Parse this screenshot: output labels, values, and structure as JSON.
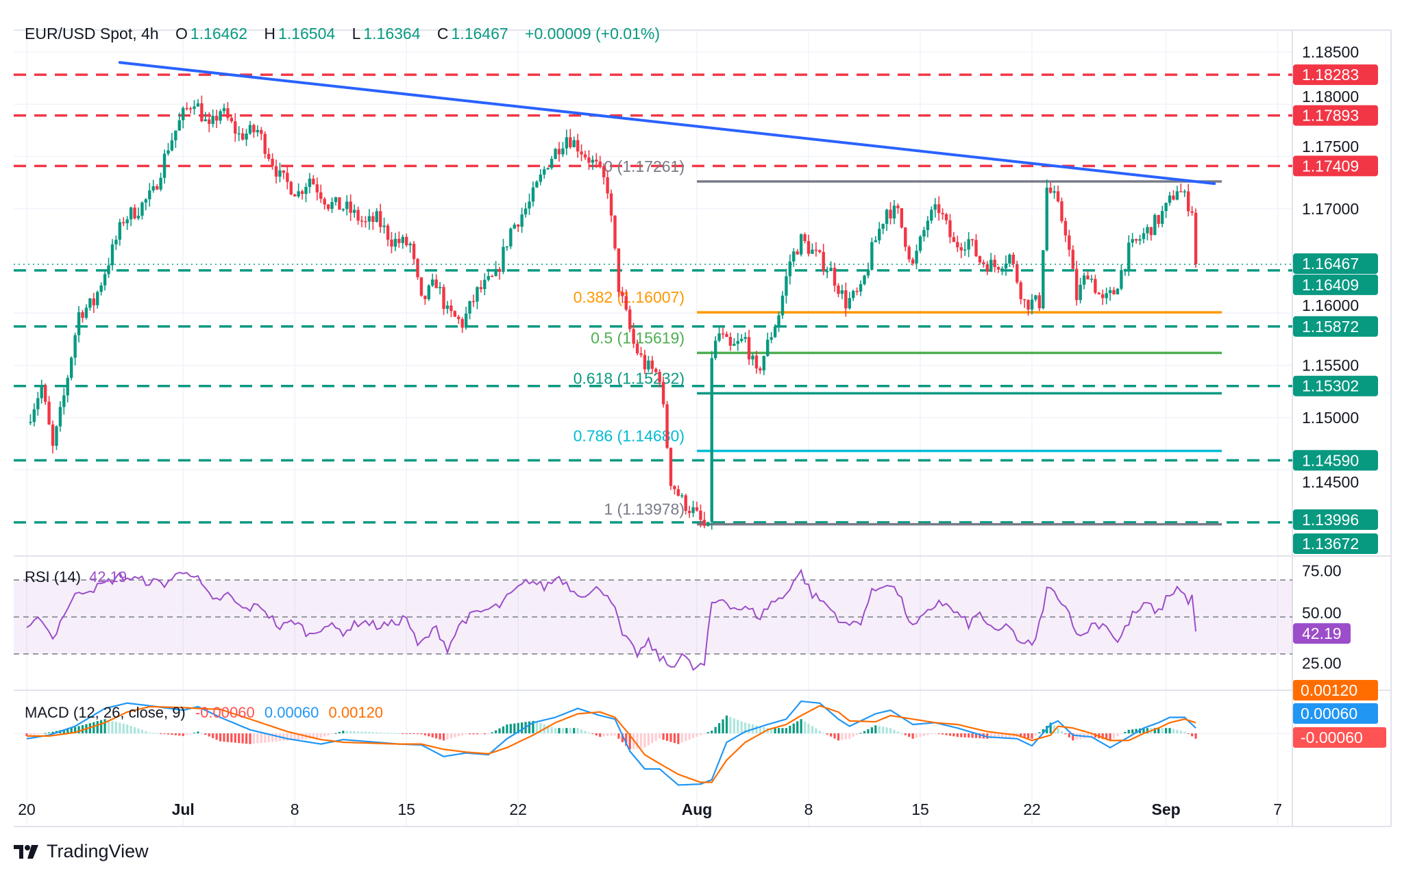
{
  "header": {
    "symbol": "EUR/USD Spot, 4h",
    "o_label": "O",
    "o": "1.16462",
    "h_label": "H",
    "h": "1.16504",
    "l_label": "L",
    "l": "1.16364",
    "c_label": "C",
    "c": "1.16467",
    "change": "+0.00009 (+0.01%)"
  },
  "logo": {
    "text": "TradingView"
  },
  "colors": {
    "up": "#089981",
    "down": "#f23645",
    "trendline": "#2962ff",
    "rsi": "#9c4dc9",
    "macd": "#2196f3",
    "signal": "#ff6d00",
    "hist_neg": "#ff5252"
  },
  "chart_data": {
    "type": "candlestick",
    "symbol": "EUR/USD Spot",
    "interval": "4h",
    "price_axis": {
      "ticks": [
        "1.18500",
        "1.18000",
        "1.17500",
        "1.17000",
        "1.16000",
        "1.15500",
        "1.15000",
        "1.14500"
      ],
      "ylim": [
        1.1355,
        1.1875
      ]
    },
    "time_axis": {
      "ticks": [
        {
          "label": "20",
          "date": "2025-06-20"
        },
        {
          "label": "Jul",
          "date": "2025-07-01",
          "bold": true
        },
        {
          "label": "8",
          "date": "2025-07-08"
        },
        {
          "label": "15",
          "date": "2025-07-15"
        },
        {
          "label": "22",
          "date": "2025-07-22"
        },
        {
          "label": "Aug",
          "date": "2025-08-01",
          "bold": true
        },
        {
          "label": "8",
          "date": "2025-08-08"
        },
        {
          "label": "15",
          "date": "2025-08-15"
        },
        {
          "label": "22",
          "date": "2025-08-22"
        },
        {
          "label": "Sep",
          "date": "2025-09-01",
          "bold": true
        },
        {
          "label": "7",
          "date": "2025-09-07"
        }
      ]
    },
    "price_path": [
      [
        "2025-06-20T00",
        1.1495
      ],
      [
        "2025-06-20T16",
        1.153
      ],
      [
        "2025-06-23T04",
        1.147
      ],
      [
        "2025-06-23T16",
        1.152
      ],
      [
        "2025-06-24T08",
        1.16
      ],
      [
        "2025-06-25T00",
        1.161
      ],
      [
        "2025-06-25T16",
        1.165
      ],
      [
        "2025-06-26T08",
        1.169
      ],
      [
        "2025-06-27T00",
        1.17
      ],
      [
        "2025-06-27T16",
        1.1715
      ],
      [
        "2025-06-30T08",
        1.176
      ],
      [
        "2025-07-01T00",
        1.179
      ],
      [
        "2025-07-01T12",
        1.1805
      ],
      [
        "2025-07-02T04",
        1.1775
      ],
      [
        "2025-07-02T16",
        1.1795
      ],
      [
        "2025-07-03T12",
        1.177
      ],
      [
        "2025-07-04T08",
        1.1775
      ],
      [
        "2025-07-07T08",
        1.173
      ],
      [
        "2025-07-08T04",
        1.1715
      ],
      [
        "2025-07-08T16",
        1.173
      ],
      [
        "2025-07-09T12",
        1.1705
      ],
      [
        "2025-07-10T08",
        1.17
      ],
      [
        "2025-07-11T04",
        1.1685
      ],
      [
        "2025-07-11T16",
        1.169
      ],
      [
        "2025-07-14T08",
        1.167
      ],
      [
        "2025-07-15T04",
        1.1665
      ],
      [
        "2025-07-15T16",
        1.161
      ],
      [
        "2025-07-16T08",
        1.163
      ],
      [
        "2025-07-16T20",
        1.16
      ],
      [
        "2025-07-17T12",
        1.159
      ],
      [
        "2025-07-18T04",
        1.162
      ],
      [
        "2025-07-21T00",
        1.1635
      ],
      [
        "2025-07-21T16",
        1.168
      ],
      [
        "2025-07-22T12",
        1.1705
      ],
      [
        "2025-07-23T08",
        1.1745
      ],
      [
        "2025-07-24T04",
        1.177
      ],
      [
        "2025-07-24T16",
        1.176
      ],
      [
        "2025-07-25T12",
        1.174
      ],
      [
        "2025-07-28T00",
        1.172
      ],
      [
        "2025-07-28T12",
        1.1625
      ],
      [
        "2025-07-29T04",
        1.157
      ],
      [
        "2025-07-29T16",
        1.155
      ],
      [
        "2025-07-30T08",
        1.154
      ],
      [
        "2025-07-30T20",
        1.144
      ],
      [
        "2025-07-31T08",
        1.142
      ],
      [
        "2025-07-31T20",
        1.141
      ],
      [
        "2025-08-01T08",
        1.1395
      ],
      [
        "2025-08-01T12",
        1.1392
      ],
      [
        "2025-08-01T16",
        1.156
      ],
      [
        "2025-08-04T00",
        1.158
      ],
      [
        "2025-08-04T12",
        1.1565
      ],
      [
        "2025-08-05T04",
        1.1575
      ],
      [
        "2025-08-05T16",
        1.154
      ],
      [
        "2025-08-06T04",
        1.157
      ],
      [
        "2025-08-06T16",
        1.16
      ],
      [
        "2025-08-07T04",
        1.165
      ],
      [
        "2025-08-07T16",
        1.167
      ],
      [
        "2025-08-08T08",
        1.1655
      ],
      [
        "2025-08-11T00",
        1.164
      ],
      [
        "2025-08-11T16",
        1.161
      ],
      [
        "2025-08-12T08",
        1.162
      ],
      [
        "2025-08-12T20",
        1.166
      ],
      [
        "2025-08-13T12",
        1.17
      ],
      [
        "2025-08-14T00",
        1.1695
      ],
      [
        "2025-08-14T16",
        1.1645
      ],
      [
        "2025-08-15T08",
        1.169
      ],
      [
        "2025-08-15T20",
        1.17
      ],
      [
        "2025-08-18T12",
        1.1665
      ],
      [
        "2025-08-19T04",
        1.167
      ],
      [
        "2025-08-19T16",
        1.165
      ],
      [
        "2025-08-20T08",
        1.1645
      ],
      [
        "2025-08-21T00",
        1.1655
      ],
      [
        "2025-08-21T16",
        1.161
      ],
      [
        "2025-08-22T08",
        1.161
      ],
      [
        "2025-08-22T16",
        1.172
      ],
      [
        "2025-08-25T00",
        1.171
      ],
      [
        "2025-08-25T12",
        1.168
      ],
      [
        "2025-08-26T00",
        1.1615
      ],
      [
        "2025-08-26T12",
        1.164
      ],
      [
        "2025-08-27T04",
        1.161
      ],
      [
        "2025-08-27T16",
        1.162
      ],
      [
        "2025-08-28T08",
        1.166
      ],
      [
        "2025-08-29T00",
        1.1675
      ],
      [
        "2025-08-29T16",
        1.169
      ],
      [
        "2025-09-01T00",
        1.17
      ],
      [
        "2025-09-01T12",
        1.172
      ],
      [
        "2025-09-02T00",
        1.1705
      ],
      [
        "2025-09-02T04",
        1.17
      ],
      [
        "2025-09-02T08",
        1.16467
      ]
    ],
    "levels_resistance": [
      "1.18283",
      "1.17893",
      "1.17409"
    ],
    "levels_support": [
      "1.16409",
      "1.15872",
      "1.15302",
      "1.14590",
      "1.13996",
      "1.13672"
    ],
    "last_price": "1.16467",
    "trendline": {
      "from": [
        "2025-06-26T04",
        1.184
      ],
      "to": [
        "2025-09-03T04",
        1.1724
      ]
    },
    "fibonacci": {
      "start": "2025-08-01T00",
      "end": "2025-09-03T12",
      "levels": [
        {
          "ratio": "0",
          "price": "1.17261",
          "label": "0 (1.17261)",
          "color": "#787b86"
        },
        {
          "ratio": "0.382",
          "price": "1.16007",
          "label": "0.382 (1.16007)",
          "color": "#ff9800"
        },
        {
          "ratio": "0.5",
          "price": "1.15619",
          "label": "0.5 (1.15619)",
          "color": "#4caf50"
        },
        {
          "ratio": "0.618",
          "price": "1.15232",
          "label": "0.618 (1.15232)",
          "color": "#089981"
        },
        {
          "ratio": "0.786",
          "price": "1.14680",
          "label": "0.786 (1.14680)",
          "color": "#00bcd4"
        },
        {
          "ratio": "1",
          "price": "1.13978",
          "label": "1 (1.13978)",
          "color": "#787b86"
        }
      ]
    },
    "rsi": {
      "title": "RSI (14)",
      "value": "42.19",
      "ticks": [
        "75.00",
        "50.00",
        "25.00"
      ],
      "bands": [
        70,
        50,
        30
      ],
      "path": [
        [
          "2025-06-20T00",
          42
        ],
        [
          "2025-06-20T16",
          50
        ],
        [
          "2025-06-23T04",
          38
        ],
        [
          "2025-06-23T16",
          52
        ],
        [
          "2025-06-24T08",
          64
        ],
        [
          "2025-06-25T04",
          66
        ],
        [
          "2025-06-26T04",
          72
        ],
        [
          "2025-06-27T00",
          70
        ],
        [
          "2025-06-30T04",
          68
        ],
        [
          "2025-07-01T04",
          76
        ],
        [
          "2025-07-01T16",
          70
        ],
        [
          "2025-07-02T08",
          58
        ],
        [
          "2025-07-03T00",
          62
        ],
        [
          "2025-07-03T16",
          54
        ],
        [
          "2025-07-04T12",
          56
        ],
        [
          "2025-07-07T08",
          44
        ],
        [
          "2025-07-08T00",
          48
        ],
        [
          "2025-07-08T16",
          40
        ],
        [
          "2025-07-09T08",
          46
        ],
        [
          "2025-07-10T04",
          42
        ],
        [
          "2025-07-11T00",
          48
        ],
        [
          "2025-07-11T16",
          45
        ],
        [
          "2025-07-14T08",
          46
        ],
        [
          "2025-07-15T00",
          50
        ],
        [
          "2025-07-15T12",
          34
        ],
        [
          "2025-07-16T08",
          44
        ],
        [
          "2025-07-16T20",
          33
        ],
        [
          "2025-07-17T12",
          48
        ],
        [
          "2025-07-18T04",
          52
        ],
        [
          "2025-07-21T04",
          56
        ],
        [
          "2025-07-21T16",
          62
        ],
        [
          "2025-07-22T12",
          70
        ],
        [
          "2025-07-23T04",
          66
        ],
        [
          "2025-07-23T20",
          72
        ],
        [
          "2025-07-24T12",
          64
        ],
        [
          "2025-07-25T04",
          62
        ],
        [
          "2025-07-25T16",
          66
        ],
        [
          "2025-07-28T04",
          60
        ],
        [
          "2025-07-28T16",
          40
        ],
        [
          "2025-07-29T08",
          30
        ],
        [
          "2025-07-29T20",
          36
        ],
        [
          "2025-07-30T08",
          28
        ],
        [
          "2025-07-30T20",
          23
        ],
        [
          "2025-07-31T08",
          30
        ],
        [
          "2025-07-31T20",
          22
        ],
        [
          "2025-08-01T08",
          24
        ],
        [
          "2025-08-01T16",
          57
        ],
        [
          "2025-08-04T04",
          60
        ],
        [
          "2025-08-04T16",
          55
        ],
        [
          "2025-08-05T08",
          54
        ],
        [
          "2025-08-05T20",
          50
        ],
        [
          "2025-08-06T08",
          58
        ],
        [
          "2025-08-06T20",
          60
        ],
        [
          "2025-08-07T08",
          70
        ],
        [
          "2025-08-07T16",
          74
        ],
        [
          "2025-08-08T04",
          62
        ],
        [
          "2025-08-08T16",
          58
        ],
        [
          "2025-08-11T04",
          52
        ],
        [
          "2025-08-11T16",
          45
        ],
        [
          "2025-08-12T08",
          48
        ],
        [
          "2025-08-12T20",
          63
        ],
        [
          "2025-08-13T12",
          69
        ],
        [
          "2025-08-14T00",
          63
        ],
        [
          "2025-08-14T16",
          44
        ],
        [
          "2025-08-15T08",
          52
        ],
        [
          "2025-08-15T20",
          59
        ],
        [
          "2025-08-18T12",
          53
        ],
        [
          "2025-08-19T04",
          46
        ],
        [
          "2025-08-19T16",
          52
        ],
        [
          "2025-08-20T08",
          41
        ],
        [
          "2025-08-21T00",
          46
        ],
        [
          "2025-08-21T12",
          34
        ],
        [
          "2025-08-22T04",
          37
        ],
        [
          "2025-08-22T16",
          65
        ],
        [
          "2025-08-25T04",
          62
        ],
        [
          "2025-08-25T16",
          52
        ],
        [
          "2025-08-26T04",
          38
        ],
        [
          "2025-08-26T16",
          46
        ],
        [
          "2025-08-27T08",
          46
        ],
        [
          "2025-08-27T20",
          36
        ],
        [
          "2025-08-28T12",
          51
        ],
        [
          "2025-08-29T04",
          57
        ],
        [
          "2025-08-29T16",
          52
        ],
        [
          "2025-09-01T00",
          60
        ],
        [
          "2025-09-01T12",
          66
        ],
        [
          "2025-09-02T00",
          59
        ],
        [
          "2025-09-02T04",
          60
        ],
        [
          "2025-09-02T08",
          42.19
        ]
      ]
    },
    "macd": {
      "title": "MACD (12, 26, close, 9)",
      "histogram": "-0.00060",
      "macd": "0.00060",
      "signal": "0.00120",
      "path": [
        [
          "2025-06-20T00",
          -0.0006,
          -0.0003
        ],
        [
          "2025-06-23T00",
          -0.0002,
          -0.0003
        ],
        [
          "2025-06-24T04",
          0.0008,
          0.0001
        ],
        [
          "2025-06-25T12",
          0.0028,
          0.0012
        ],
        [
          "2025-06-26T12",
          0.0034,
          0.0024
        ],
        [
          "2025-06-27T12",
          0.0031,
          0.003
        ],
        [
          "2025-07-01T00",
          0.0026,
          0.0029
        ],
        [
          "2025-07-01T16",
          0.003,
          0.0028
        ],
        [
          "2025-07-02T16",
          0.0018,
          0.0027
        ],
        [
          "2025-07-04T00",
          0.0004,
          0.0016
        ],
        [
          "2025-07-07T16",
          -0.0006,
          0.0002
        ],
        [
          "2025-07-09T04",
          -0.0012,
          -0.0007
        ],
        [
          "2025-07-10T04",
          -0.0007,
          -0.001
        ],
        [
          "2025-07-14T16",
          -0.0012,
          -0.0012
        ],
        [
          "2025-07-15T16",
          -0.0013,
          -0.0012
        ],
        [
          "2025-07-16T16",
          -0.0026,
          -0.0018
        ],
        [
          "2025-07-17T16",
          -0.0022,
          -0.0021
        ],
        [
          "2025-07-18T16",
          -0.0024,
          -0.0023
        ],
        [
          "2025-07-21T12",
          -0.0006,
          -0.0016
        ],
        [
          "2025-07-22T16",
          0.0012,
          -0.0002
        ],
        [
          "2025-07-23T16",
          0.0018,
          0.0012
        ],
        [
          "2025-07-24T16",
          0.0028,
          0.0022
        ],
        [
          "2025-07-25T16",
          0.002,
          0.0024
        ],
        [
          "2025-07-28T08",
          0.0016,
          0.0018
        ],
        [
          "2025-07-29T00",
          -0.002,
          -0.0002
        ],
        [
          "2025-07-29T16",
          -0.004,
          -0.0024
        ],
        [
          "2025-07-30T08",
          -0.004,
          -0.0034
        ],
        [
          "2025-07-31T04",
          -0.0058,
          -0.0046
        ],
        [
          "2025-08-01T04",
          -0.0057,
          -0.0055
        ],
        [
          "2025-08-01T16",
          -0.0052,
          -0.0055
        ],
        [
          "2025-08-04T08",
          -0.001,
          -0.003
        ],
        [
          "2025-08-05T04",
          0.0002,
          -0.001
        ],
        [
          "2025-08-06T04",
          0.001,
          0.0004
        ],
        [
          "2025-08-07T00",
          0.0016,
          0.001
        ],
        [
          "2025-08-07T16",
          0.0036,
          0.002
        ],
        [
          "2025-08-08T12",
          0.0034,
          0.0031
        ],
        [
          "2025-08-11T08",
          0.0016,
          0.0024
        ],
        [
          "2025-08-11T20",
          0.0008,
          0.0014
        ],
        [
          "2025-08-13T00",
          0.0022,
          0.0013
        ],
        [
          "2025-08-13T16",
          0.0026,
          0.002
        ],
        [
          "2025-08-14T16",
          0.001,
          0.0016
        ],
        [
          "2025-08-15T16",
          0.0012,
          0.0012
        ],
        [
          "2025-08-18T16",
          0.0006,
          0.001
        ],
        [
          "2025-08-20T00",
          -0.0004,
          0.0002
        ],
        [
          "2025-08-21T08",
          -0.0006,
          -0.0002
        ],
        [
          "2025-08-22T00",
          -0.0014,
          -0.0008
        ],
        [
          "2025-08-22T20",
          0.001,
          -0.0002
        ],
        [
          "2025-08-25T04",
          0.0014,
          0.0008
        ],
        [
          "2025-08-25T20",
          -0.0002,
          0.0006
        ],
        [
          "2025-08-26T16",
          -0.0004,
          0.0
        ],
        [
          "2025-08-27T12",
          -0.0016,
          -0.0008
        ],
        [
          "2025-08-28T08",
          -0.0004,
          -0.0008
        ],
        [
          "2025-08-29T00",
          0.0006,
          0.0
        ],
        [
          "2025-08-29T16",
          0.0012,
          0.0006
        ],
        [
          "2025-09-01T04",
          0.0018,
          0.0012
        ],
        [
          "2025-09-01T20",
          0.0018,
          0.0016
        ],
        [
          "2025-09-02T08",
          0.0006,
          0.0012
        ]
      ]
    }
  }
}
